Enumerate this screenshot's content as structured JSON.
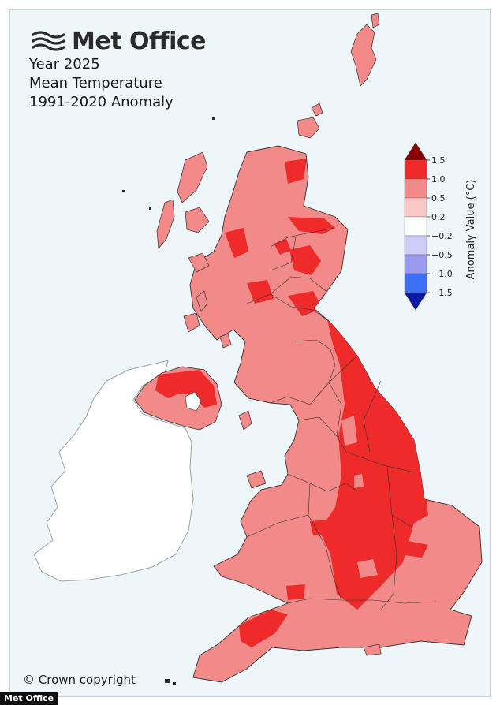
{
  "header": {
    "brand_name": "Met Office",
    "brand_icon": "met-office-wave-logo",
    "line1": "Year 2025",
    "line2": "Mean Temperature",
    "line3": "1991-2020 Anomaly"
  },
  "legend": {
    "title": "Anomaly Value (°C)",
    "ticks": [
      "1.5",
      "1.0",
      "0.5",
      "0.2",
      "−0.2",
      "−0.5",
      "−1.0",
      "−1.5"
    ],
    "bands": [
      {
        "range": "above 1.5",
        "color": "#8b0000"
      },
      {
        "range": "1.0 to 1.5",
        "color": "#ee2a2a"
      },
      {
        "range": "0.5 to 1.0",
        "color": "#f38a8a"
      },
      {
        "range": "0.2 to 0.5",
        "color": "#fbc8c8"
      },
      {
        "range": "-0.2 to 0.2",
        "color": "#ffffff"
      },
      {
        "range": "-0.5 to -0.2",
        "color": "#cdcdf7"
      },
      {
        "range": "-1.0 to -0.5",
        "color": "#9a9af0"
      },
      {
        "range": "-1.5 to -1.0",
        "color": "#3d6ff5"
      },
      {
        "range": "below -1.5",
        "color": "#0b1aa8"
      }
    ]
  },
  "map_colors": {
    "sea": "#eef6fa",
    "uk_base": "#f38a8a",
    "warm_region": "#ee2a2a",
    "ireland_no_data": "#ffffff",
    "boundary": "#333333"
  },
  "footer": {
    "copyright": "© Crown copyright",
    "credit": "Met Office"
  }
}
